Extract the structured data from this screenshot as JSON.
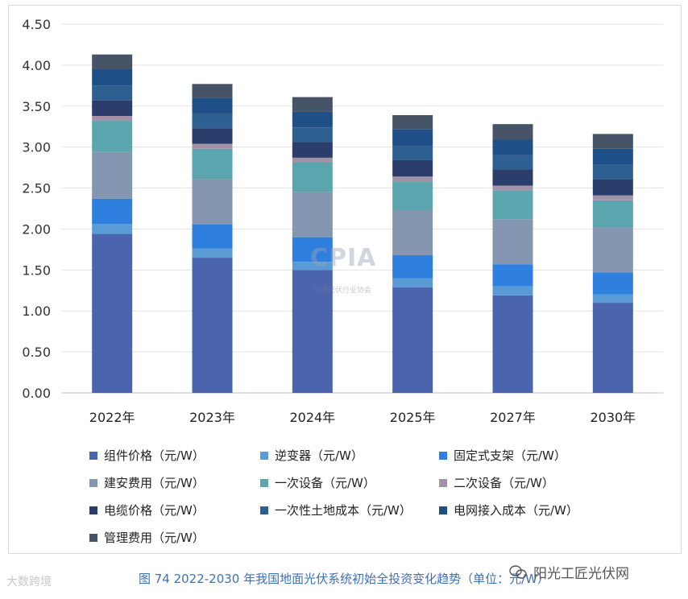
{
  "chart_data": {
    "type": "bar",
    "stacked": true,
    "categories": [
      "2022年",
      "2023年",
      "2024年",
      "2025年",
      "2027年",
      "2030年"
    ],
    "ylim": [
      0,
      4.5
    ],
    "yticks": [
      "0.00",
      "0.50",
      "1.00",
      "1.50",
      "2.00",
      "2.50",
      "3.00",
      "3.50",
      "4.00",
      "4.50"
    ],
    "grid": true,
    "legend_position": "bottom",
    "series": [
      {
        "name": "组件价格（元/W）",
        "color": "#4a64ad",
        "values": [
          1.94,
          1.65,
          1.5,
          1.29,
          1.19,
          1.1
        ]
      },
      {
        "name": "逆变器（元/W）",
        "color": "#5b9bd5",
        "values": [
          0.12,
          0.11,
          0.1,
          0.11,
          0.11,
          0.1
        ]
      },
      {
        "name": "固定式支架（元/W）",
        "color": "#2e7fde",
        "values": [
          0.31,
          0.3,
          0.3,
          0.28,
          0.27,
          0.27
        ]
      },
      {
        "name": "建安费用（元/W）",
        "color": "#8496b0",
        "values": [
          0.57,
          0.55,
          0.55,
          0.55,
          0.55,
          0.55
        ]
      },
      {
        "name": "一次设备（元/W）",
        "color": "#5ba5ae",
        "values": [
          0.38,
          0.37,
          0.36,
          0.35,
          0.35,
          0.33
        ]
      },
      {
        "name": "二次设备（元/W）",
        "color": "#a093a8",
        "values": [
          0.06,
          0.06,
          0.06,
          0.06,
          0.06,
          0.06
        ]
      },
      {
        "name": "电缆价格（元/W）",
        "color": "#2a3d6b",
        "values": [
          0.19,
          0.19,
          0.19,
          0.2,
          0.2,
          0.2
        ]
      },
      {
        "name": "一次性土地成本（元/W）",
        "color": "#2d6090",
        "values": [
          0.18,
          0.18,
          0.18,
          0.17,
          0.17,
          0.18
        ]
      },
      {
        "name": "电网接入成本（元/W）",
        "color": "#1e4f86",
        "values": [
          0.2,
          0.19,
          0.19,
          0.21,
          0.19,
          0.19
        ]
      },
      {
        "name": "管理费用（元/W）",
        "color": "#475366",
        "values": [
          0.18,
          0.17,
          0.18,
          0.17,
          0.19,
          0.18
        ]
      }
    ]
  },
  "caption": "图 74   2022-2030 年我国地面光伏系统初始全投资变化趋势（单位：元/W）",
  "watermark": {
    "logo_text": "CPIA",
    "org_name": "中国光伏行业协会"
  },
  "source_left": "大数跨境",
  "source_right": "阳光工匠光伏网"
}
